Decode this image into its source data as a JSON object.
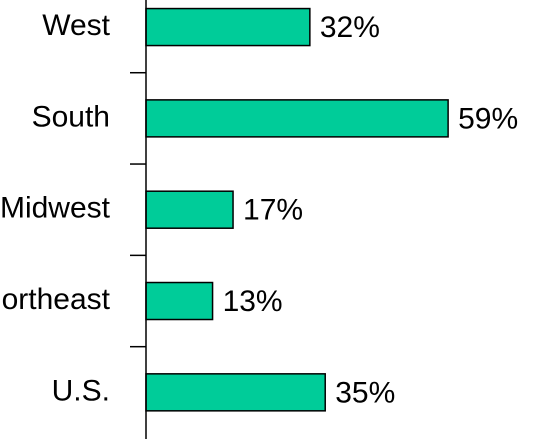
{
  "chart_data": {
    "type": "bar",
    "orientation": "horizontal",
    "categories": [
      "West",
      "South",
      "Midwest",
      "Northeast",
      "U.S."
    ],
    "values": [
      32,
      59,
      17,
      13,
      35
    ],
    "value_labels": [
      "32%",
      "59%",
      "17%",
      "13%",
      "35%"
    ],
    "color": "#00cc99",
    "xlim": [
      0,
      78
    ]
  }
}
